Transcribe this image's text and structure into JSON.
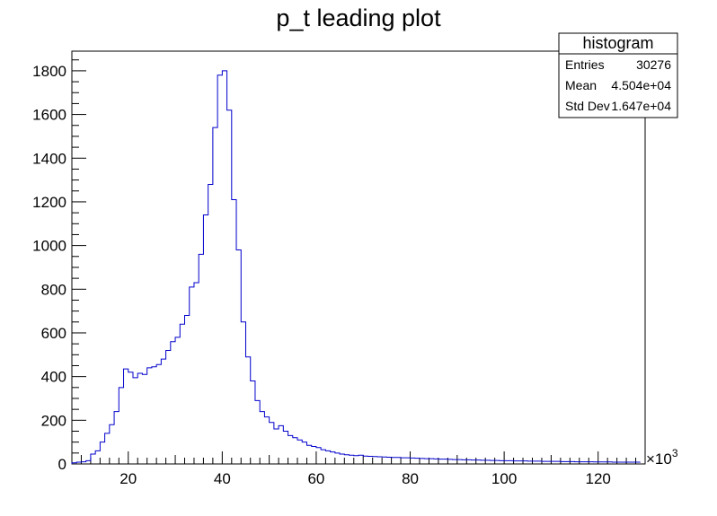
{
  "chart_data": {
    "type": "histogram",
    "title": "p_t leading plot",
    "xlabel": "",
    "ylabel": "",
    "x_multiplier_label": "×10",
    "x_multiplier_exponent": "3",
    "xlim": [
      8,
      130
    ],
    "ylim": [
      0,
      1890
    ],
    "x_ticks": [
      20,
      40,
      60,
      80,
      100,
      120
    ],
    "x_tick_labels": [
      "20",
      "40",
      "60",
      "80",
      "100",
      "120"
    ],
    "y_ticks": [
      0,
      200,
      400,
      600,
      800,
      1000,
      1200,
      1400,
      1600,
      1800
    ],
    "y_tick_labels": [
      "0",
      "200",
      "400",
      "600",
      "800",
      "1000",
      "1200",
      "1400",
      "1600",
      "1800"
    ],
    "line_color": "#0000cc",
    "bin_start": 8,
    "bin_width": 1,
    "bin_values": [
      5,
      8,
      10,
      15,
      45,
      60,
      100,
      140,
      180,
      240,
      350,
      435,
      420,
      395,
      415,
      410,
      440,
      445,
      455,
      480,
      520,
      560,
      580,
      640,
      680,
      810,
      830,
      960,
      1140,
      1280,
      1540,
      1780,
      1800,
      1620,
      1210,
      980,
      650,
      490,
      380,
      290,
      240,
      215,
      190,
      160,
      175,
      150,
      130,
      120,
      110,
      100,
      85,
      80,
      75,
      65,
      60,
      55,
      50,
      45,
      42,
      40,
      38,
      40,
      36,
      35,
      34,
      33,
      32,
      31,
      30,
      30,
      28,
      28,
      27,
      26,
      25,
      24,
      24,
      23,
      22,
      22,
      21,
      20,
      20,
      19,
      19,
      18,
      18,
      17,
      17,
      16,
      16,
      15,
      15,
      15,
      14,
      14,
      14,
      13,
      13,
      13,
      12,
      12,
      12,
      12,
      11,
      11,
      11,
      10,
      10,
      10,
      10,
      9,
      9,
      9,
      9,
      8,
      8,
      8,
      8,
      8,
      8
    ]
  },
  "stats_box": {
    "title": "histogram",
    "rows": [
      {
        "label": "Entries",
        "value": "30276"
      },
      {
        "label": "Mean",
        "value": "4.504e+04"
      },
      {
        "label": "Std Dev",
        "value": "1.647e+04"
      }
    ]
  }
}
